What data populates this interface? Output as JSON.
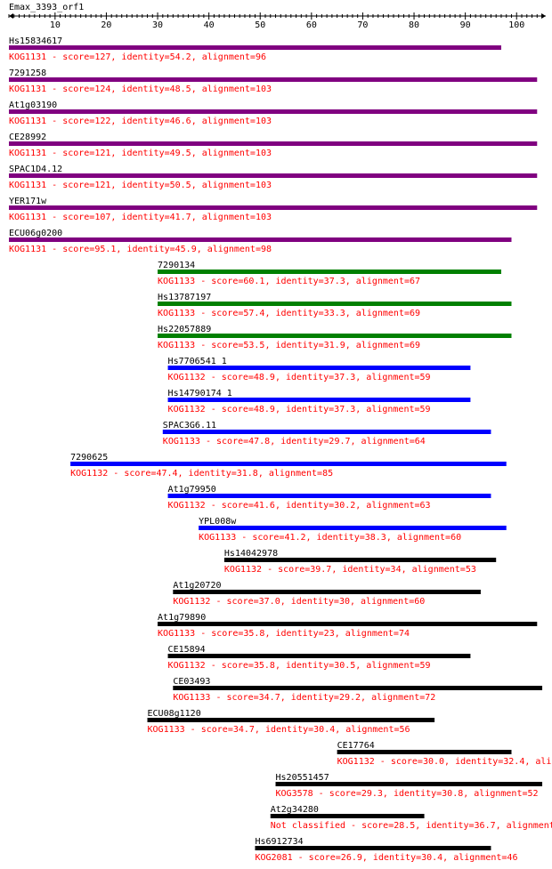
{
  "query": {
    "name": "Emax_3393_orf1",
    "length": 105
  },
  "axis": {
    "ticks": [
      10,
      20,
      30,
      40,
      50,
      60,
      70,
      80,
      90,
      100
    ],
    "range": [
      1,
      105
    ]
  },
  "colors": {
    "purple": "#800080",
    "green": "#008000",
    "blue": "#0000ff",
    "black": "#000000",
    "label": "#000000",
    "description": "#ff0000"
  },
  "hits": [
    {
      "name": "Hs15834617",
      "description": "KOG1131 - score=127, identity=54.2, alignment=96",
      "start": 1,
      "end": 97,
      "color": "purple"
    },
    {
      "name": "7291258",
      "description": "KOG1131 - score=124, identity=48.5, alignment=103",
      "start": 1,
      "end": 104,
      "color": "purple"
    },
    {
      "name": "At1g03190",
      "description": "KOG1131 - score=122, identity=46.6, alignment=103",
      "start": 1,
      "end": 104,
      "color": "purple"
    },
    {
      "name": "CE28992",
      "description": "KOG1131 - score=121, identity=49.5, alignment=103",
      "start": 1,
      "end": 104,
      "color": "purple"
    },
    {
      "name": "SPAC1D4.12",
      "description": "KOG1131 - score=121, identity=50.5, alignment=103",
      "start": 1,
      "end": 104,
      "color": "purple"
    },
    {
      "name": "YER171w",
      "description": "KOG1131 - score=107, identity=41.7, alignment=103",
      "start": 1,
      "end": 104,
      "color": "purple"
    },
    {
      "name": "ECU06g0200",
      "description": "KOG1131 - score=95.1, identity=45.9, alignment=98",
      "start": 1,
      "end": 99,
      "color": "purple"
    },
    {
      "name": "7290134",
      "description": "KOG1133 - score=60.1, identity=37.3, alignment=67",
      "start": 30,
      "end": 97,
      "color": "green"
    },
    {
      "name": "Hs13787197",
      "description": "KOG1133 - score=57.4, identity=33.3, alignment=69",
      "start": 30,
      "end": 99,
      "color": "green"
    },
    {
      "name": "Hs22057889",
      "description": "KOG1133 - score=53.5, identity=31.9, alignment=69",
      "start": 30,
      "end": 99,
      "color": "green"
    },
    {
      "name": "Hs7706541_1",
      "description": "KOG1132 - score=48.9, identity=37.3, alignment=59",
      "start": 32,
      "end": 91,
      "color": "blue"
    },
    {
      "name": "Hs14790174_1",
      "description": "KOG1132 - score=48.9, identity=37.3, alignment=59",
      "start": 32,
      "end": 91,
      "color": "blue"
    },
    {
      "name": "SPAC3G6.11",
      "description": "KOG1133 - score=47.8, identity=29.7, alignment=64",
      "start": 31,
      "end": 95,
      "color": "blue"
    },
    {
      "name": "7290625",
      "description": "KOG1132 - score=47.4, identity=31.8, alignment=85",
      "start": 13,
      "end": 98,
      "color": "blue"
    },
    {
      "name": "At1g79950",
      "description": "KOG1132 - score=41.6, identity=30.2, alignment=63",
      "start": 32,
      "end": 95,
      "color": "blue"
    },
    {
      "name": "YPL008w",
      "description": "KOG1133 - score=41.2, identity=38.3, alignment=60",
      "start": 38,
      "end": 98,
      "color": "blue"
    },
    {
      "name": "Hs14042978",
      "description": "KOG1132 - score=39.7, identity=34, alignment=53",
      "start": 43,
      "end": 96,
      "color": "black"
    },
    {
      "name": "At1g20720",
      "description": "KOG1132 - score=37.0, identity=30, alignment=60",
      "start": 33,
      "end": 93,
      "color": "black"
    },
    {
      "name": "At1g79890",
      "description": "KOG1133 - score=35.8, identity=23, alignment=74",
      "start": 30,
      "end": 104,
      "color": "black"
    },
    {
      "name": "CE15894",
      "description": "KOG1132 - score=35.8, identity=30.5, alignment=59",
      "start": 32,
      "end": 91,
      "color": "black"
    },
    {
      "name": "CE03493",
      "description": "KOG1133 - score=34.7, identity=29.2, alignment=72",
      "start": 33,
      "end": 105,
      "color": "black"
    },
    {
      "name": "ECU08g1120",
      "description": "KOG1133 - score=34.7, identity=30.4, alignment=56",
      "start": 28,
      "end": 84,
      "color": "black"
    },
    {
      "name": "CE17764",
      "description": "KOG1132 - score=30.0, identity=32.4, ali",
      "start": 65,
      "end": 99,
      "color": "black"
    },
    {
      "name": "Hs20551457",
      "description": "KOG3578 - score=29.3, identity=30.8, alignment=52",
      "start": 53,
      "end": 105,
      "color": "black"
    },
    {
      "name": "At2g34280",
      "description": "Not classified - score=28.5, identity=36.7, alignment",
      "start": 52,
      "end": 82,
      "color": "black"
    },
    {
      "name": "Hs6912734",
      "description": "KOG2081 - score=26.9, identity=30.4, alignment=46",
      "start": 49,
      "end": 95,
      "color": "black"
    }
  ]
}
